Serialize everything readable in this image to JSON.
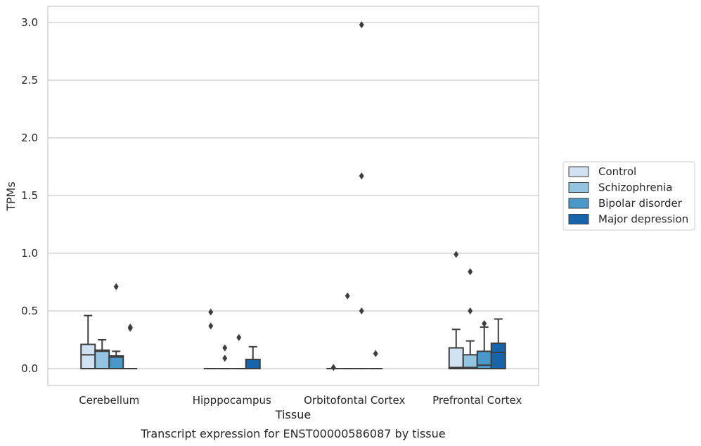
{
  "chart_data": {
    "type": "box",
    "xlabel": "Tissue",
    "ylabel": "TPMs",
    "caption": "Transcript expression for ENST00000586087 by tissue",
    "ylim": [
      -0.14,
      3.13
    ],
    "yticks": [
      "0.0",
      "0.5",
      "1.0",
      "1.5",
      "2.0",
      "2.5",
      "3.0"
    ],
    "grid": true,
    "legend_position": "right",
    "categories": [
      "Cerebellum",
      "Hipppocampus",
      "Orbitofontal Cortex",
      "Prefrontal Cortex"
    ],
    "series": [
      {
        "name": "Control",
        "color": "#d0e1f2"
      },
      {
        "name": "Schizophrenia",
        "color": "#94c4df"
      },
      {
        "name": "Bipolar disorder",
        "color": "#4a98c9"
      },
      {
        "name": "Major depression",
        "color": "#1764ab"
      }
    ],
    "boxes": [
      [
        {
          "q1": 0,
          "median": 0.12,
          "q3": 0.21,
          "whisker_low": 0,
          "whisker_high": 0.46,
          "outliers": []
        },
        {
          "q1": 0,
          "median": 0.15,
          "q3": 0.16,
          "whisker_low": 0,
          "whisker_high": 0.25,
          "outliers": []
        },
        {
          "q1": 0,
          "median": 0.1,
          "q3": 0.11,
          "whisker_low": 0,
          "whisker_high": 0.15,
          "outliers": [
            0.71
          ]
        },
        {
          "q1": 0,
          "median": 0,
          "q3": 0,
          "whisker_low": 0,
          "whisker_high": 0,
          "outliers": [
            0.35,
            0.36
          ]
        }
      ],
      [
        {
          "q1": 0,
          "median": 0,
          "q3": 0,
          "whisker_low": 0,
          "whisker_high": 0,
          "outliers": [
            0.37,
            0.49
          ]
        },
        {
          "q1": 0,
          "median": 0,
          "q3": 0,
          "whisker_low": 0,
          "whisker_high": 0,
          "outliers": [
            0.09,
            0.18
          ]
        },
        {
          "q1": 0,
          "median": 0,
          "q3": 0,
          "whisker_low": 0,
          "whisker_high": 0,
          "outliers": [
            0.27
          ]
        },
        {
          "q1": 0,
          "median": 0,
          "q3": 0.08,
          "whisker_low": 0,
          "whisker_high": 0.19,
          "outliers": []
        }
      ],
      [
        {
          "q1": 0,
          "median": 0,
          "q3": 0,
          "whisker_low": 0,
          "whisker_high": 0,
          "outliers": [
            0.01
          ]
        },
        {
          "q1": 0,
          "median": 0,
          "q3": 0,
          "whisker_low": 0,
          "whisker_high": 0,
          "outliers": [
            0.63
          ]
        },
        {
          "q1": 0,
          "median": 0,
          "q3": 0,
          "whisker_low": 0,
          "whisker_high": 0,
          "outliers": [
            2.98,
            1.67,
            0.5
          ]
        },
        {
          "q1": 0,
          "median": 0,
          "q3": 0,
          "whisker_low": 0,
          "whisker_high": 0,
          "outliers": [
            0.13
          ]
        }
      ],
      [
        {
          "q1": 0,
          "median": 0.01,
          "q3": 0.18,
          "whisker_low": 0,
          "whisker_high": 0.34,
          "outliers": [
            0.99
          ]
        },
        {
          "q1": 0,
          "median": 0.01,
          "q3": 0.12,
          "whisker_low": 0,
          "whisker_high": 0.24,
          "outliers": [
            0.84,
            0.5
          ]
        },
        {
          "q1": 0,
          "median": 0.03,
          "q3": 0.15,
          "whisker_low": 0,
          "whisker_high": 0.36,
          "outliers": [
            0.39
          ]
        },
        {
          "q1": 0,
          "median": 0.14,
          "q3": 0.22,
          "whisker_low": 0,
          "whisker_high": 0.43,
          "outliers": []
        }
      ]
    ]
  }
}
